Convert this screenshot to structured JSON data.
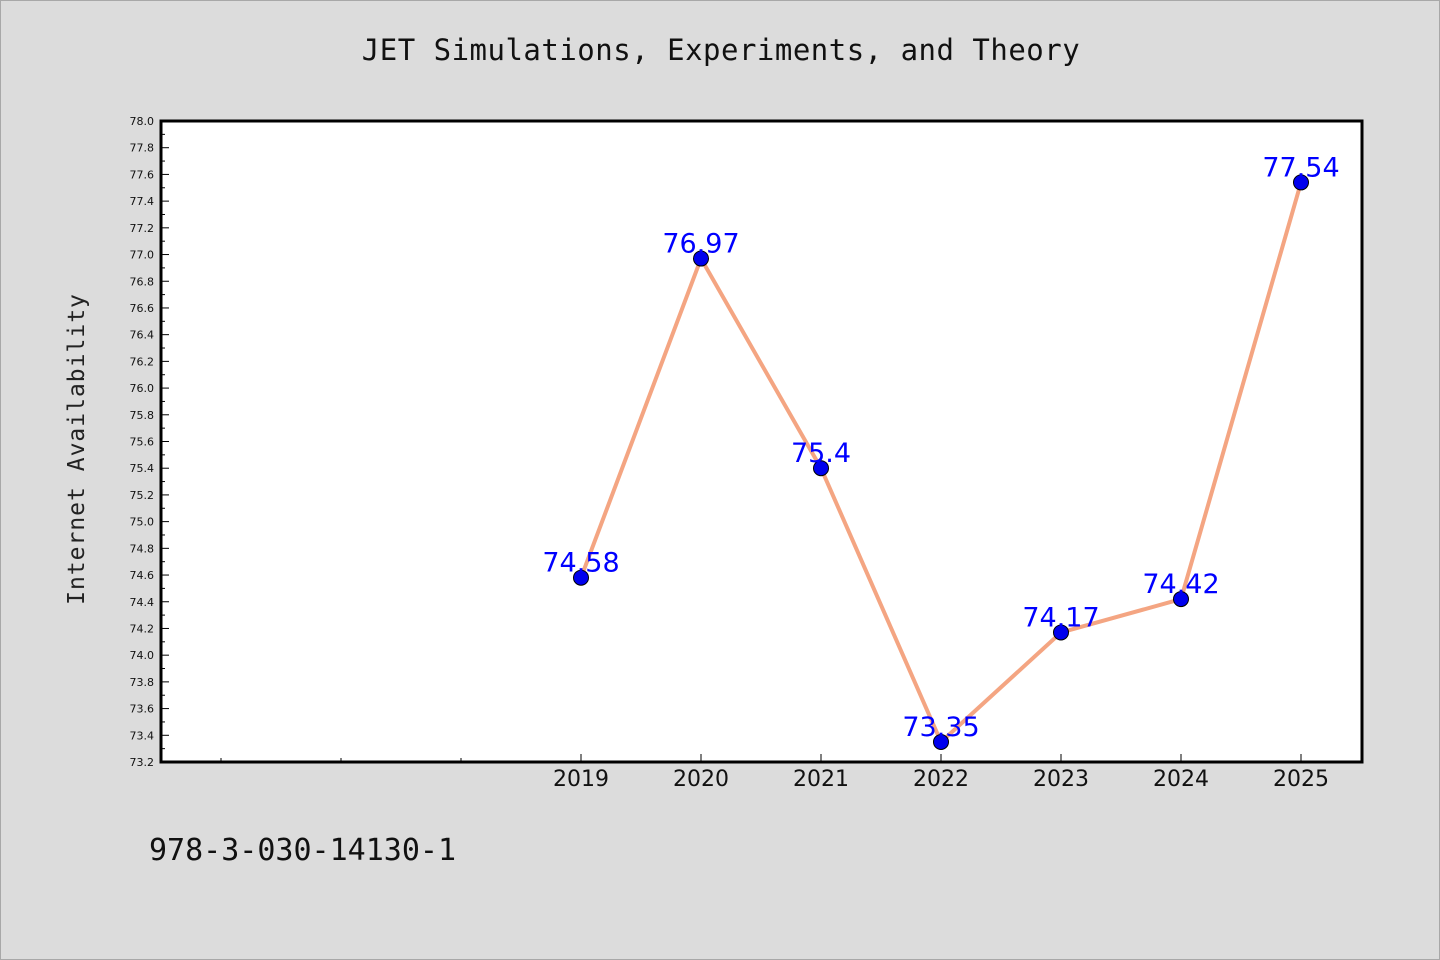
{
  "chart_data": {
    "type": "line",
    "title": "JET Simulations, Experiments, and Theory",
    "xlabel": "",
    "ylabel": "Internet Availability",
    "categories": [
      "2019",
      "2020",
      "2021",
      "2022",
      "2023",
      "2024",
      "2025"
    ],
    "values": [
      74.58,
      76.97,
      75.4,
      73.35,
      74.17,
      74.42,
      77.54
    ],
    "data_labels": [
      "74.58",
      "76.97",
      "75.4",
      "73.35",
      "74.17",
      "74.42",
      "77.54"
    ],
    "ylim": [
      73.2,
      78.0
    ],
    "y_ticks": [
      "73.2",
      "73.4",
      "73.6",
      "73.8",
      "74.0",
      "74.2",
      "74.4",
      "74.6",
      "74.8",
      "75.0",
      "75.2",
      "75.4",
      "75.6",
      "75.8",
      "76.0",
      "76.2",
      "76.4",
      "76.6",
      "76.8",
      "77.0",
      "77.2",
      "77.4",
      "77.6",
      "77.8",
      "78.0"
    ],
    "x_slots_before_first_category": 3,
    "grid": false,
    "colors": {
      "line": "#f4a582",
      "marker": "#0000ee",
      "label": "#0000ff",
      "plot_background": "#ffffff",
      "page_background": "#dcdcdc"
    }
  },
  "footnote": "978-3-030-14130-1"
}
